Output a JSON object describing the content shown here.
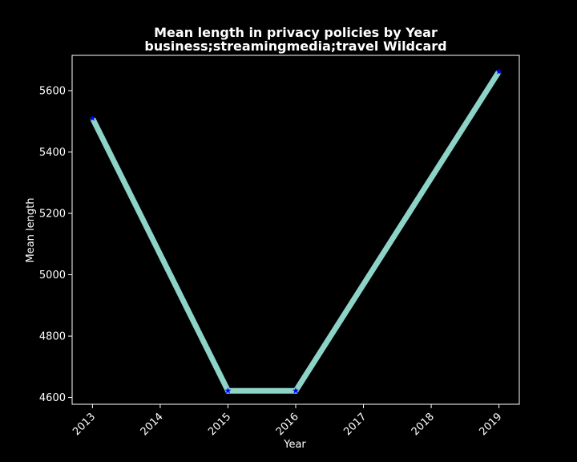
{
  "chart_data": {
    "type": "line",
    "title_line1": "Mean length in privacy policies by Year",
    "title_line2": "business;streamingmedia;travel Wildcard",
    "xlabel": "Year",
    "ylabel": "Mean length",
    "x_ticks": [
      "2013",
      "2014",
      "2015",
      "2016",
      "2017",
      "2018",
      "2019"
    ],
    "y_ticks": [
      "4600",
      "4800",
      "5000",
      "5200",
      "5400",
      "5600"
    ],
    "xlim": [
      2012.7,
      2019.3
    ],
    "ylim": [
      4578,
      5715
    ],
    "grid": false,
    "series": [
      {
        "x": [
          2013,
          2015,
          2016,
          2019
        ],
        "y": [
          5510,
          4622,
          4622,
          5662
        ]
      }
    ],
    "colors": {
      "background": "#000000",
      "axes": "#ffffff",
      "text": "#ffffff",
      "line": "#8dd3c7",
      "marker": "#0000ff"
    }
  }
}
